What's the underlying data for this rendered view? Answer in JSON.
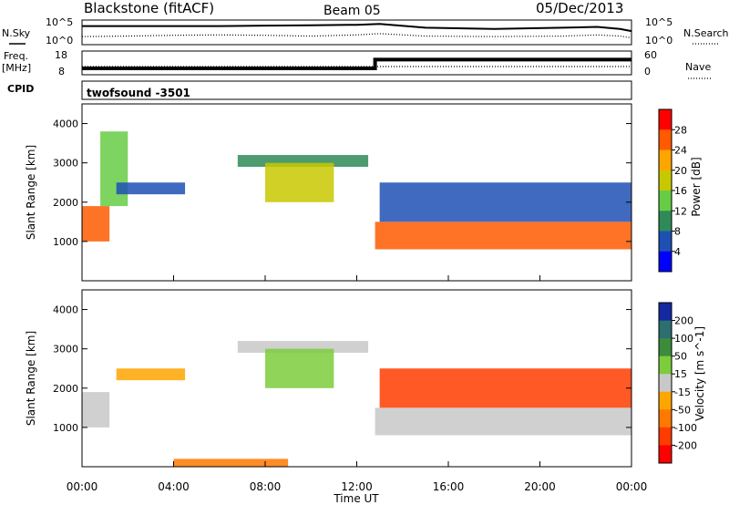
{
  "header": {
    "station": "Blackstone (fitACF)",
    "beam": "Beam 05",
    "date": "05/Dec/2013"
  },
  "noise_panel": {
    "left_label": "N.Sky",
    "right_label": "N.Search",
    "left_ticks": [
      "10^5",
      "10^0"
    ],
    "right_ticks": [
      "10^5",
      "10^0"
    ]
  },
  "freq_panel": {
    "left_label_1": "Freq.",
    "left_label_2": "[MHz]",
    "right_label": "Nave",
    "left_ticks": [
      "18",
      "8"
    ],
    "right_ticks": [
      "60",
      "0"
    ]
  },
  "cpid_panel": {
    "label": "CPID",
    "value": "twofsound  -3501"
  },
  "power_panel": {
    "ylabel": "Slant Range [km]",
    "cbar_label": "Power [dB]",
    "cbar_ticks": [
      "28",
      "24",
      "20",
      "16",
      "12",
      "8",
      "4"
    ],
    "cbar_colors": [
      "#ff0000",
      "#ff5a00",
      "#ffa500",
      "#c8c800",
      "#66cc44",
      "#2e8b57",
      "#1e50b4",
      "#0000ff"
    ]
  },
  "velocity_panel": {
    "ylabel": "Slant Range [km]",
    "cbar_label": "Velocity [m s^-1]",
    "cbar_ticks": [
      "200",
      "100",
      "50",
      "15",
      "-15",
      "-50",
      "-100",
      "-200"
    ],
    "cbar_colors": [
      "#1428a0",
      "#2d6e6e",
      "#3c8c3c",
      "#7ccd3c",
      "#c8c8c8",
      "#ffa500",
      "#ff7800",
      "#ff3c00",
      "#ff0000"
    ]
  },
  "xaxis": {
    "label": "Time UT",
    "ticks": [
      "00:00",
      "04:00",
      "08:00",
      "12:00",
      "16:00",
      "20:00",
      "00:00"
    ]
  },
  "chart_data": [
    {
      "type": "line",
      "title": "N.Sky / N.Search",
      "x": [
        0,
        2,
        4,
        6,
        8,
        10,
        12,
        13,
        15,
        18,
        21,
        22.5,
        23.5,
        24
      ],
      "series": [
        {
          "name": "N.Sky",
          "values": [
            4.0,
            4.0,
            4.0,
            4.0,
            4.1,
            4.2,
            4.3,
            4.5,
            3.6,
            3.3,
            3.6,
            3.8,
            3.3,
            2.8
          ]
        },
        {
          "name": "N.Search",
          "values": [
            1.5,
            1.6,
            1.8,
            1.9,
            1.8,
            1.6,
            1.9,
            2.2,
            1.6,
            1.5,
            1.6,
            1.9,
            1.6,
            1.2
          ]
        }
      ],
      "xlim": [
        0,
        24
      ],
      "ylim": [
        0,
        5
      ]
    },
    {
      "type": "line",
      "title": "Freq. / Nave",
      "x": [
        0,
        12.8,
        12.8,
        24
      ],
      "series": [
        {
          "name": "Freq.",
          "values": [
            10.5,
            10.5,
            14.5,
            14.5
          ]
        },
        {
          "name": "Nave",
          "values": [
            20,
            20,
            20,
            20
          ]
        }
      ],
      "xlim": [
        0,
        24
      ],
      "ylim": [
        8,
        18
      ]
    },
    {
      "type": "heatmap",
      "title": "Power [dB]",
      "xlabel": "Time UT",
      "ylabel": "Slant Range [km]",
      "xlim": [
        0,
        24
      ],
      "ylim": [
        0,
        4500
      ],
      "bands": [
        {
          "t_start": 0.0,
          "t_end": 1.2,
          "range_start": 1000,
          "range_end": 1900,
          "power_db": 28
        },
        {
          "t_start": 0.8,
          "t_end": 2.0,
          "range_start": 1900,
          "range_end": 3800,
          "power_db": 14
        },
        {
          "t_start": 1.5,
          "t_end": 4.5,
          "range_start": 2200,
          "range_end": 2500,
          "power_db": 8
        },
        {
          "t_start": 6.8,
          "t_end": 12.5,
          "range_start": 2900,
          "range_end": 3200,
          "power_db": 12
        },
        {
          "t_start": 8.0,
          "t_end": 11.0,
          "range_start": 2000,
          "range_end": 3000,
          "power_db": 20
        },
        {
          "t_start": 12.8,
          "t_end": 24.0,
          "range_start": 800,
          "range_end": 1500,
          "power_db": 28
        },
        {
          "t_start": 13.0,
          "t_end": 24.0,
          "range_start": 1500,
          "range_end": 2500,
          "power_db": 8
        }
      ]
    },
    {
      "type": "heatmap",
      "title": "Velocity [m s^-1]",
      "xlabel": "Time UT",
      "ylabel": "Slant Range [km]",
      "xlim": [
        0,
        24
      ],
      "ylim": [
        0,
        4500
      ],
      "bands": [
        {
          "t_start": 0.0,
          "t_end": 1.2,
          "range_start": 1000,
          "range_end": 1900,
          "velocity": 0
        },
        {
          "t_start": 1.5,
          "t_end": 4.5,
          "range_start": 2200,
          "range_end": 2500,
          "velocity": -30
        },
        {
          "t_start": 6.8,
          "t_end": 12.5,
          "range_start": 2900,
          "range_end": 3200,
          "velocity": 0
        },
        {
          "t_start": 8.0,
          "t_end": 11.0,
          "range_start": 2000,
          "range_end": 3000,
          "velocity": 20
        },
        {
          "t_start": 12.8,
          "t_end": 24.0,
          "range_start": 800,
          "range_end": 1500,
          "velocity": -5
        },
        {
          "t_start": 13.0,
          "t_end": 24.0,
          "range_start": 1500,
          "range_end": 2500,
          "velocity": -150
        },
        {
          "t_start": 4.0,
          "t_end": 9.0,
          "range_start": 0,
          "range_end": 200,
          "velocity": -60
        }
      ]
    }
  ]
}
